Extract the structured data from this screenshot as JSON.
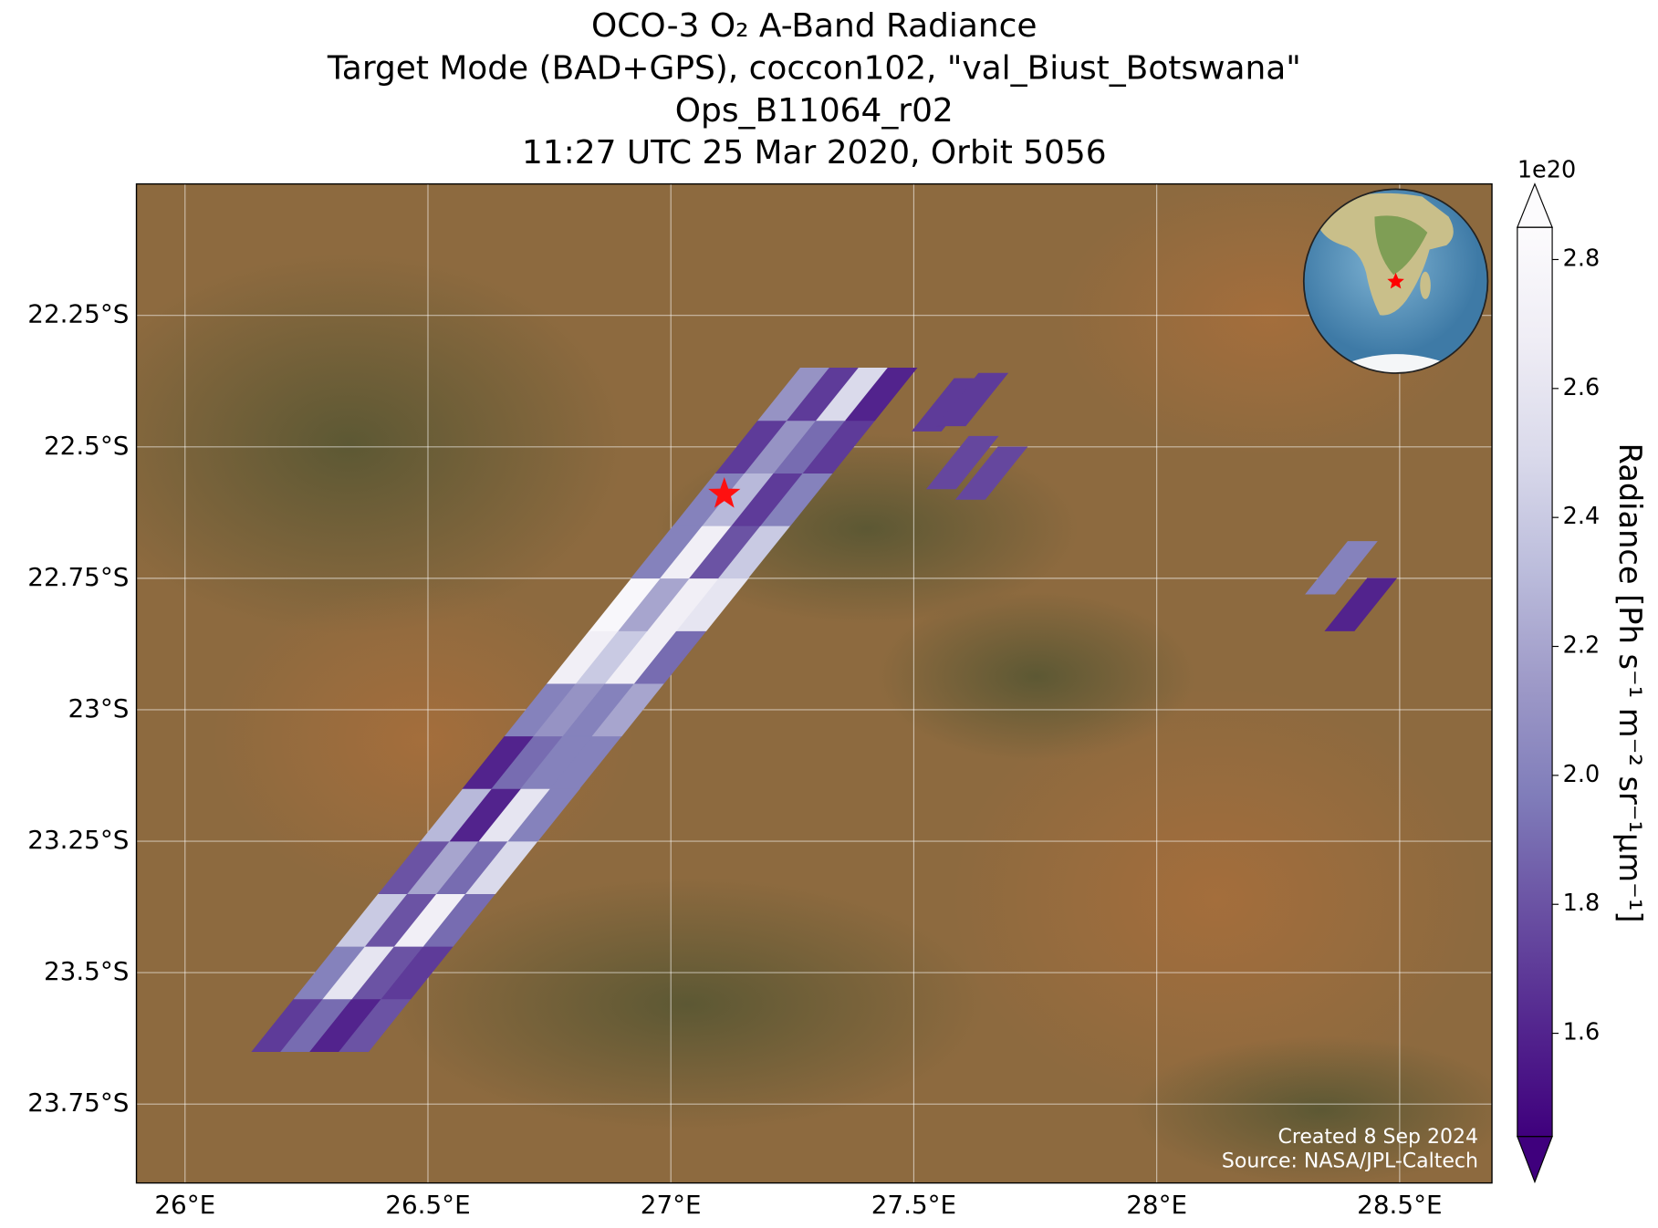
{
  "chart_data": {
    "type": "map",
    "title": [
      "OCO-3 O₂ A-Band Radiance",
      "Target Mode (BAD+GPS), coccon102, \"val_Biust_Botswana\"",
      "Ops_B11064_r02",
      "11:27 UTC 25 Mar 2020, Orbit 5056"
    ],
    "xlim": [
      25.9,
      28.69
    ],
    "ylim": [
      -23.9,
      -22.0
    ],
    "xticks": [
      {
        "value": 26,
        "label": "26°E"
      },
      {
        "value": 26.5,
        "label": "26.5°E"
      },
      {
        "value": 27,
        "label": "27°E"
      },
      {
        "value": 27.5,
        "label": "27.5°E"
      },
      {
        "value": 28,
        "label": "28°E"
      },
      {
        "value": 28.5,
        "label": "28.5°E"
      }
    ],
    "yticks": [
      {
        "value": -22.25,
        "label": "22.25°S"
      },
      {
        "value": -22.5,
        "label": "22.5°S"
      },
      {
        "value": -22.75,
        "label": "22.75°S"
      },
      {
        "value": -23,
        "label": "23°S"
      },
      {
        "value": -23.25,
        "label": "23.25°S"
      },
      {
        "value": -23.5,
        "label": "23.5°S"
      },
      {
        "value": -23.75,
        "label": "23.75°S"
      }
    ],
    "grid": true,
    "colorbar_label": "Radiance [Ph s⁻¹ m⁻² sr⁻¹μm⁻¹]",
    "colorbar_multiplier": "1e20",
    "clim": [
      1.44,
      2.85
    ],
    "cticks": [
      1.6,
      1.8,
      {
        "value": 2,
        "label": "2.0"
      },
      2.2,
      2.4,
      2.6,
      2.8
    ],
    "colormap": [
      "#3f007d",
      "#54278f",
      "#6a51a3",
      "#807dba",
      "#9e9ac8",
      "#bcbddc",
      "#dadaeb",
      "#efedf5",
      "#fcfbfd"
    ],
    "x": [
      26.211,
      26.271,
      26.331,
      26.391,
      26.298,
      26.358,
      26.418,
      26.478,
      26.385,
      26.445,
      26.505,
      26.565,
      26.472,
      26.532,
      26.592,
      26.652,
      26.559,
      26.619,
      26.679,
      26.739,
      26.645,
      26.705,
      26.765,
      26.825,
      26.732,
      26.792,
      26.852,
      26.912,
      26.819,
      26.879,
      26.939,
      26.999,
      26.906,
      26.966,
      27.026,
      27.086,
      26.992,
      27.052,
      27.112,
      27.172,
      27.079,
      27.139,
      27.199,
      27.259,
      27.166,
      27.226,
      27.286,
      27.346,
      27.253,
      27.313,
      27.373,
      27.433,
      27.57,
      27.62,
      27.6,
      27.66,
      28.38,
      28.42
    ],
    "y": [
      -23.6,
      -23.6,
      -23.6,
      -23.6,
      -23.5,
      -23.5,
      -23.5,
      -23.5,
      -23.4,
      -23.4,
      -23.4,
      -23.4,
      -23.3,
      -23.3,
      -23.3,
      -23.3,
      -23.2,
      -23.2,
      -23.2,
      -23.2,
      -23.1,
      -23.1,
      -23.1,
      -23.1,
      -23.0,
      -23.0,
      -23.0,
      -23.0,
      -22.9,
      -22.9,
      -22.9,
      -22.9,
      -22.8,
      -22.8,
      -22.8,
      -22.8,
      -22.7,
      -22.7,
      -22.7,
      -22.7,
      -22.6,
      -22.6,
      -22.6,
      -22.6,
      -22.5,
      -22.5,
      -22.5,
      -22.5,
      -22.4,
      -22.4,
      -22.4,
      -22.4,
      -22.42,
      -22.41,
      -22.53,
      -22.55,
      -22.73,
      -22.8
    ],
    "values": [
      1.7,
      1.9,
      1.6,
      1.8,
      2.0,
      2.6,
      1.8,
      1.7,
      2.4,
      1.8,
      2.7,
      1.9,
      1.8,
      2.2,
      1.9,
      2.5,
      2.3,
      1.6,
      2.6,
      2.0,
      1.6,
      1.9,
      2.0,
      2.0,
      2.0,
      2.1,
      2.0,
      2.2,
      2.7,
      2.4,
      2.7,
      1.9,
      2.8,
      2.2,
      2.7,
      2.6,
      2.0,
      2.7,
      1.8,
      2.4,
      2.0,
      2.3,
      1.7,
      2.0,
      1.7,
      2.1,
      1.9,
      1.7,
      2.1,
      1.7,
      2.5,
      1.6,
      1.7,
      1.7,
      1.75,
      1.75,
      2.0,
      1.6
    ],
    "target": {
      "lon": 27.11,
      "lat": -22.59
    },
    "credit": [
      "Created 8 Sep 2024",
      "Source: NASA/JPL-Caltech"
    ]
  }
}
